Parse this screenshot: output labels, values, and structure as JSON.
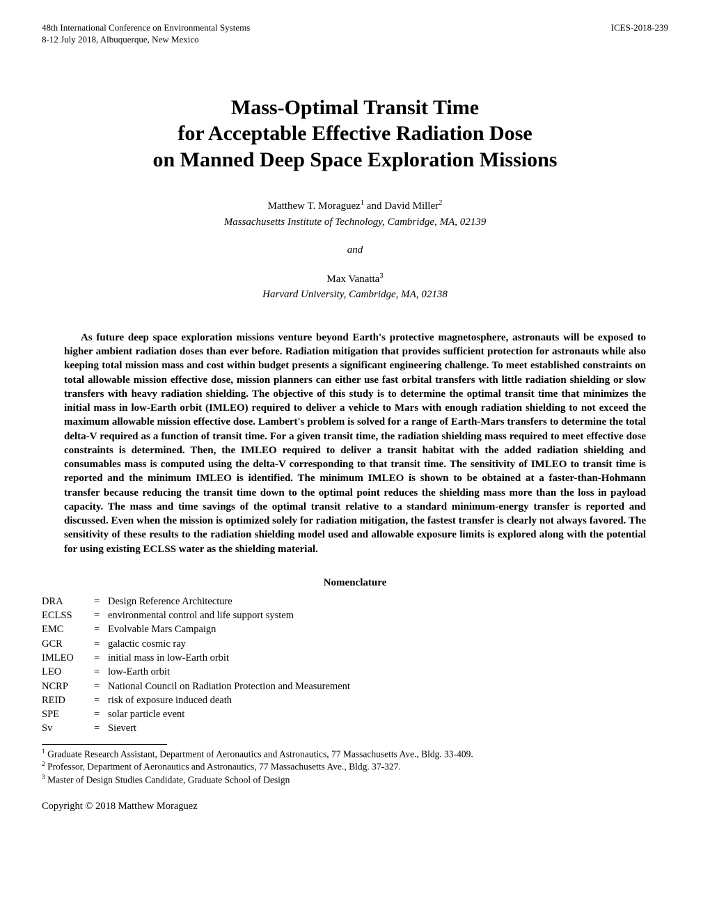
{
  "header": {
    "conference_line1": "48th International Conference on Environmental Systems",
    "conference_line2": "8-12 July 2018, Albuquerque, New Mexico",
    "paper_id": "ICES-2018-239"
  },
  "title": {
    "line1": "Mass-Optimal Transit Time",
    "line2": "for Acceptable Effective Radiation Dose",
    "line3": "on Manned Deep Space Exploration Missions"
  },
  "authors": {
    "group1_names": "Matthew T. Moraguez",
    "group1_sup1": "1",
    "group1_and": " and David Miller",
    "group1_sup2": "2",
    "group1_affiliation": "Massachusetts Institute of Technology, Cambridge, MA, 02139",
    "and_text": "and",
    "group2_names": "Max Vanatta",
    "group2_sup": "3",
    "group2_affiliation": "Harvard University, Cambridge, MA, 02138"
  },
  "abstract": "As future deep space exploration missions venture beyond Earth's protective magnetosphere, astronauts will be exposed to higher ambient radiation doses than ever before. Radiation mitigation that provides sufficient protection for astronauts while also keeping total mission mass and cost within budget presents a significant engineering challenge. To meet established constraints on total allowable mission effective dose, mission planners can either use fast orbital transfers with little radiation shielding or slow transfers with heavy radiation shielding. The objective of this study is to determine the optimal transit time that minimizes the initial mass in low-Earth orbit (IMLEO) required to deliver a vehicle to Mars with enough radiation shielding to not exceed the maximum allowable mission effective dose. Lambert's problem is solved for a range of Earth-Mars transfers to determine the total delta-V required as a function of transit time. For a given transit time, the radiation shielding mass required to meet effective dose constraints is determined. Then, the IMLEO required to deliver a transit habitat with the added radiation shielding and consumables mass is computed using the delta-V corresponding to that transit time. The sensitivity of IMLEO to transit time is reported and the minimum IMLEO is identified. The minimum IMLEO is shown to be obtained at a faster-than-Hohmann transfer because reducing the transit time down to the optimal point reduces the shielding mass more than the loss in payload capacity. The mass and time savings of the optimal transit relative to a standard minimum-energy transfer is reported and discussed. Even when the mission is optimized solely for radiation mitigation, the fastest transfer is clearly not always favored. The sensitivity of these results to the radiation shielding model used and allowable exposure limits is explored along with the potential for using existing ECLSS water as the shielding material.",
  "nomenclature_heading": "Nomenclature",
  "nomenclature": [
    {
      "abbr": "DRA",
      "def": "Design Reference Architecture"
    },
    {
      "abbr": "ECLSS",
      "def": "environmental control and life support system"
    },
    {
      "abbr": "EMC",
      "def": "Evolvable Mars Campaign"
    },
    {
      "abbr": "GCR",
      "def": "galactic cosmic ray"
    },
    {
      "abbr": "IMLEO",
      "def": "initial mass in low-Earth orbit"
    },
    {
      "abbr": "LEO",
      "def": "low-Earth orbit"
    },
    {
      "abbr": "NCRP",
      "def": "National Council on Radiation Protection and Measurement"
    },
    {
      "abbr": "REID",
      "def": "risk of exposure induced death"
    },
    {
      "abbr": "SPE",
      "def": "solar particle event"
    },
    {
      "abbr": "Sv",
      "def": "Sievert"
    }
  ],
  "footnotes": [
    {
      "num": "1",
      "text": " Graduate Research Assistant, Department of Aeronautics and Astronautics, 77 Massachusetts Ave., Bldg. 33-409."
    },
    {
      "num": "2",
      "text": " Professor, Department of Aeronautics and Astronautics, 77 Massachusetts Ave., Bldg. 37-327."
    },
    {
      "num": "3",
      "text": " Master of Design Studies Candidate, Graduate School of Design"
    }
  ],
  "copyright": "Copyright © 2018 Matthew Moraguez"
}
